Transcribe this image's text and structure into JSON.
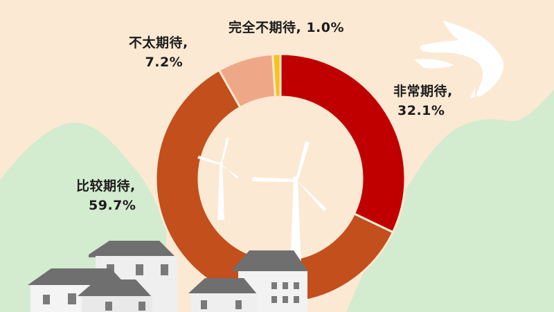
{
  "chart_data": {
    "type": "pie",
    "style": "donut",
    "categories": [
      "非常期待",
      "比较期待",
      "不太期待",
      "完全不期待"
    ],
    "values": [
      32.1,
      59.7,
      7.2,
      1.0
    ],
    "value_labels": [
      "32.1%",
      "59.7%",
      "7.2%",
      "1.0%"
    ],
    "colors": [
      "#c00000",
      "#c24f1c",
      "#efa887",
      "#f7c21a"
    ],
    "labels": {
      "very": {
        "name": "非常期待,",
        "pct": "32.1%"
      },
      "fairly": {
        "name": "比较期待,",
        "pct": "59.7%"
      },
      "notvery": {
        "name": "不太期待,",
        "pct": "7.2%"
      },
      "notatall": {
        "text": "完全不期待, 1.0%"
      }
    }
  },
  "palette": {
    "background": "#fbe9d3",
    "hills": "#d3ebcf",
    "building_wall": "#efefef",
    "building_roof": "#6f6f6f",
    "turbine": "#ffffff"
  },
  "decorations": [
    "swallow-bird",
    "wind-turbine",
    "wind-turbine",
    "village-houses",
    "green-hills"
  ]
}
